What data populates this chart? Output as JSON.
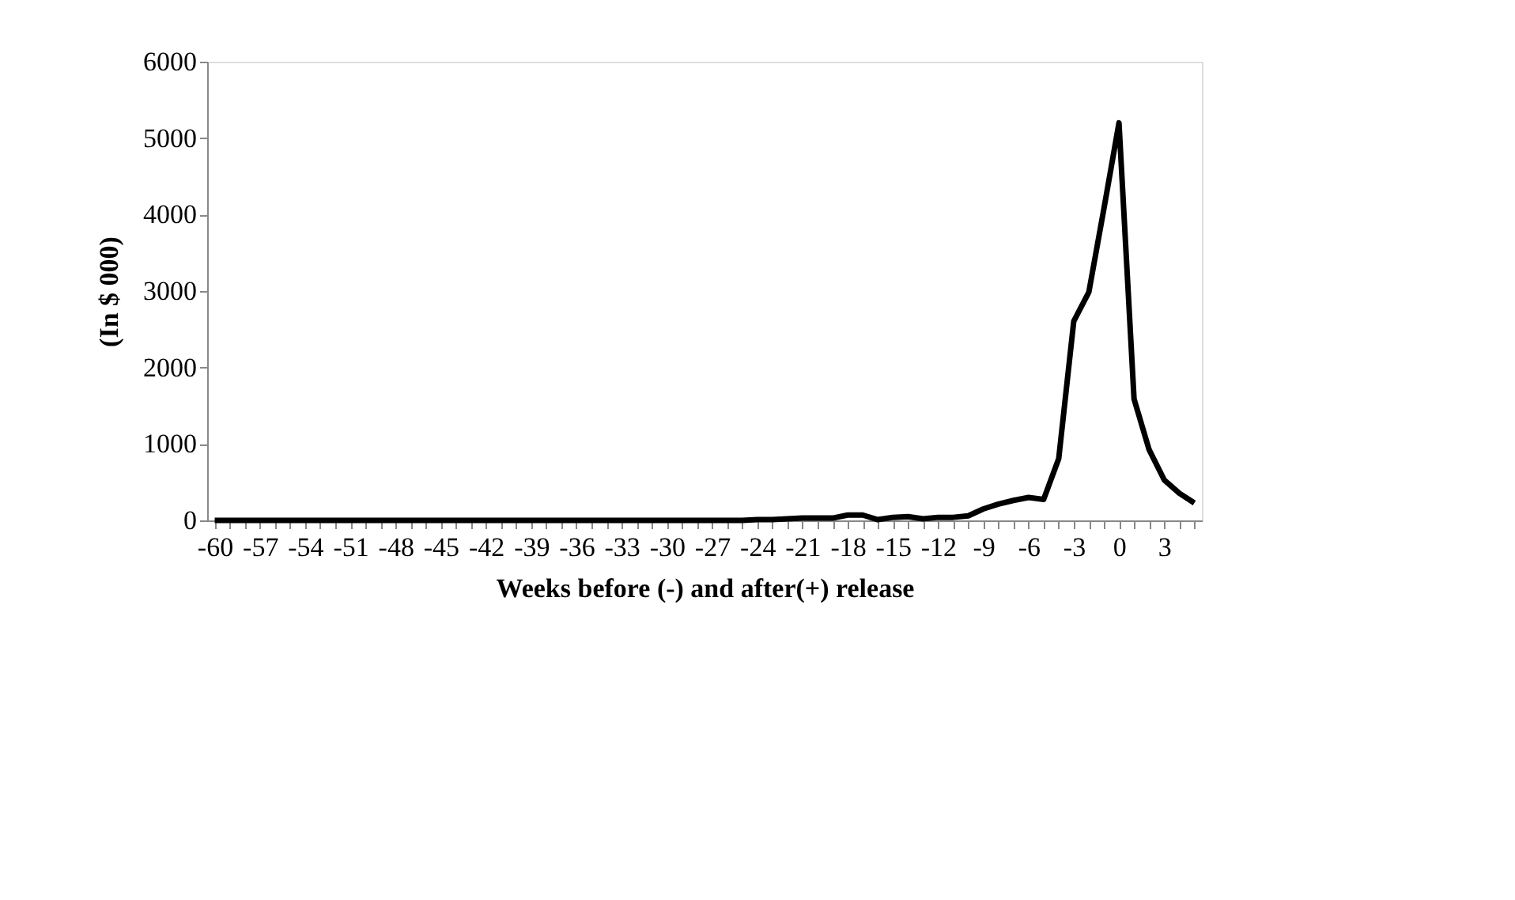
{
  "chart_data": {
    "type": "line",
    "xlabel": "Weeks before (-) and after(+) release",
    "ylabel": "(In $ 000)",
    "categories": [
      "-60",
      null,
      null,
      "-57",
      null,
      null,
      "-54",
      null,
      null,
      "-51",
      null,
      null,
      "-48",
      null,
      null,
      "-45",
      null,
      null,
      "-42",
      null,
      null,
      "-39",
      null,
      null,
      "-36",
      null,
      null,
      "-33",
      null,
      null,
      "-30",
      null,
      null,
      "-27",
      null,
      null,
      "-24",
      null,
      null,
      "-21",
      null,
      null,
      "-18",
      null,
      null,
      "-15",
      null,
      null,
      "-12",
      null,
      null,
      "-9",
      null,
      null,
      "-6",
      null,
      null,
      "-3",
      null,
      null,
      "0",
      null,
      null,
      "3",
      null,
      null
    ],
    "series": [
      {
        "color": "#000000",
        "values": [
          0,
          0,
          0,
          0,
          0,
          0,
          0,
          0,
          0,
          0,
          0,
          0,
          0,
          0,
          0,
          0,
          0,
          0,
          0,
          0,
          0,
          0,
          0,
          0,
          0,
          0,
          0,
          0,
          0,
          0,
          0,
          0,
          0,
          0,
          0,
          0,
          10,
          10,
          20,
          30,
          30,
          30,
          70,
          70,
          10,
          40,
          50,
          20,
          40,
          40,
          60,
          150,
          213,
          261,
          300,
          275,
          806,
          2606,
          2986,
          4076,
          5200,
          1588,
          924,
          530,
          355,
          227
        ]
      }
    ],
    "ylim": [
      0,
      6000
    ],
    "yticks": [
      0,
      1000,
      2000,
      3000,
      4000,
      5000,
      6000
    ],
    "grid": false,
    "marker": "none",
    "line_style": "solid"
  }
}
